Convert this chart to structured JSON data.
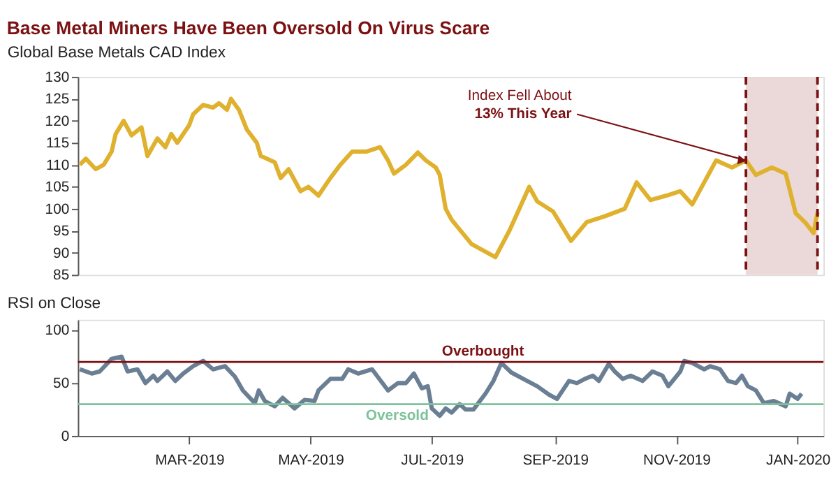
{
  "chart_data": [
    {
      "type": "line",
      "title": "Base Metal Miners Have Been Oversold On Virus Scare",
      "subtitle": "Global Base Metals CAD Index",
      "x": [
        "2019-01-05",
        "2019-01-08",
        "2019-01-13",
        "2019-01-17",
        "2019-01-21",
        "2019-01-23",
        "2019-01-27",
        "2019-01-31",
        "2019-02-05",
        "2019-02-08",
        "2019-02-13",
        "2019-02-17",
        "2019-02-20",
        "2019-02-23",
        "2019-03-01",
        "2019-03-03",
        "2019-03-08",
        "2019-03-13",
        "2019-03-16",
        "2019-03-20",
        "2019-03-22",
        "2019-03-26",
        "2019-03-30",
        "2019-04-04",
        "2019-04-06",
        "2019-04-13",
        "2019-04-16",
        "2019-04-20",
        "2019-04-26",
        "2019-04-30",
        "2019-05-05",
        "2019-05-11",
        "2019-05-16",
        "2019-05-22",
        "2019-05-29",
        "2019-06-05",
        "2019-06-09",
        "2019-06-12",
        "2019-06-18",
        "2019-06-24",
        "2019-06-28",
        "2019-07-03",
        "2019-07-05",
        "2019-07-08",
        "2019-07-11",
        "2019-07-21",
        "2019-08-02",
        "2019-08-09",
        "2019-08-19",
        "2019-08-23",
        "2019-08-31",
        "2019-09-09",
        "2019-09-17",
        "2019-09-26",
        "2019-10-06",
        "2019-10-12",
        "2019-10-19",
        "2019-10-27",
        "2019-11-03",
        "2019-11-09",
        "2019-11-15",
        "2019-11-21",
        "2019-11-29",
        "2019-12-06",
        "2019-12-11",
        "2019-12-19",
        "2019-12-26",
        "2019-12-31",
        "2020-01-05",
        "2020-01-09",
        "2020-01-11"
      ],
      "series": [
        {
          "color": "#e0b12e",
          "values": [
            110,
            111.4,
            109,
            110,
            113,
            117,
            120,
            116.7,
            118.5,
            112,
            116,
            114,
            117,
            115,
            119,
            121.5,
            123.6,
            123,
            124,
            122.5,
            125,
            122.5,
            118,
            115,
            112,
            110.6,
            107,
            109,
            104,
            105,
            103,
            107,
            110,
            113,
            113,
            114,
            111,
            108,
            110,
            112.8,
            111,
            109.4,
            107.7,
            100,
            97.5,
            92,
            89,
            95,
            105,
            101.7,
            99.4,
            92.7,
            97,
            98.3,
            100,
            106,
            102,
            103,
            104,
            101,
            106,
            111,
            109.4,
            111,
            107.7,
            109.4,
            108,
            99,
            96.8,
            94.5,
            99.2
          ]
        }
      ],
      "xlim": [
        "2019-01-04",
        "2020-01-14"
      ],
      "ylim": [
        85,
        130
      ],
      "yticks": [
        85,
        90,
        95,
        100,
        105,
        110,
        115,
        120,
        125,
        130
      ],
      "tick_labels": "y",
      "grid": false,
      "line_style": "solid",
      "marker": "none",
      "bands": [
        {
          "axis": "x",
          "from": "2019-12-06",
          "to": "2020-01-11",
          "color": "#ead9d8"
        }
      ],
      "ref_lines": [
        {
          "axis": "x",
          "value": "2019-12-06",
          "color": "#7b1113",
          "line_style": "dashed"
        },
        {
          "axis": "x",
          "value": "2020-01-11",
          "color": "#7b1113",
          "line_style": "dashed"
        }
      ],
      "annotations": [
        {
          "text": "Index Fell About\n13% This Year",
          "x": "2019-12-06",
          "y": 111
        }
      ]
    },
    {
      "type": "line",
      "title": "RSI on Close",
      "x": [
        "2019-01-05",
        "2019-01-11",
        "2019-01-15",
        "2019-01-21",
        "2019-01-26",
        "2019-01-29",
        "2019-02-03",
        "2019-02-07",
        "2019-02-11",
        "2019-02-13",
        "2019-02-18",
        "2019-02-22",
        "2019-02-26",
        "2019-03-03",
        "2019-03-08",
        "2019-03-13",
        "2019-03-19",
        "2019-03-24",
        "2019-03-28",
        "2019-04-03",
        "2019-04-05",
        "2019-04-08",
        "2019-04-13",
        "2019-04-17",
        "2019-04-23",
        "2019-04-28",
        "2019-05-03",
        "2019-05-05",
        "2019-05-11",
        "2019-05-17",
        "2019-05-20",
        "2019-05-25",
        "2019-06-01",
        "2019-06-09",
        "2019-06-14",
        "2019-06-18",
        "2019-06-22",
        "2019-06-26",
        "2019-06-29",
        "2019-07-01",
        "2019-07-05",
        "2019-07-08",
        "2019-07-11",
        "2019-07-15",
        "2019-07-18",
        "2019-07-22",
        "2019-07-28",
        "2019-08-01",
        "2019-08-05",
        "2019-08-10",
        "2019-08-18",
        "2019-08-23",
        "2019-08-29",
        "2019-09-02",
        "2019-09-08",
        "2019-09-12",
        "2019-09-16",
        "2019-09-20",
        "2019-09-23",
        "2019-09-28",
        "2019-10-01",
        "2019-10-05",
        "2019-10-09",
        "2019-10-15",
        "2019-10-20",
        "2019-10-25",
        "2019-10-28",
        "2019-11-03",
        "2019-11-05",
        "2019-11-09",
        "2019-11-15",
        "2019-11-18",
        "2019-11-23",
        "2019-11-27",
        "2019-12-01",
        "2019-12-04",
        "2019-12-07",
        "2019-12-11",
        "2019-12-15",
        "2019-12-20",
        "2019-12-26",
        "2019-12-28",
        "2020-01-01",
        "2020-01-03"
      ],
      "series": [
        {
          "color": "#6b7f94",
          "values": [
            63,
            59,
            61,
            73,
            75,
            61,
            63,
            50,
            57,
            52,
            61,
            52,
            59,
            66,
            71,
            63,
            66,
            56,
            43,
            31,
            43,
            33,
            28,
            36,
            26,
            34,
            33,
            43,
            54,
            54,
            63,
            59,
            63,
            43,
            50,
            50,
            59,
            45,
            47,
            26,
            19,
            26,
            22,
            30,
            25,
            25,
            40,
            52,
            69,
            60,
            52,
            47,
            39,
            35,
            52,
            50,
            54,
            57,
            52,
            68,
            61,
            54,
            57,
            52,
            61,
            57,
            47,
            61,
            71,
            69,
            63,
            66,
            63,
            52,
            50,
            57,
            47,
            43,
            31,
            33,
            28,
            40,
            35,
            40
          ]
        }
      ],
      "xlim": [
        "2019-01-04",
        "2020-01-14"
      ],
      "ylim": [
        0,
        110
      ],
      "yticks": [
        0,
        50,
        100
      ],
      "xticks": [
        {
          "value": "2019-03-01",
          "label": "MAR-2019"
        },
        {
          "value": "2019-05-01",
          "label": "MAY-2019"
        },
        {
          "value": "2019-07-01",
          "label": "JUL-2019"
        },
        {
          "value": "2019-09-01",
          "label": "SEP-2019"
        },
        {
          "value": "2019-11-01",
          "label": "NOV-2019"
        },
        {
          "value": "2020-01-01",
          "label": "JAN-2020"
        }
      ],
      "grid": false,
      "line_style": "solid",
      "marker": "none",
      "ref_lines": [
        {
          "axis": "y",
          "value": 70,
          "label": "Overbought",
          "color": "#7b1113",
          "line_style": "solid"
        },
        {
          "axis": "y",
          "value": 30,
          "label": "Oversold",
          "color": "#7dc29a",
          "line_style": "solid"
        }
      ]
    }
  ]
}
